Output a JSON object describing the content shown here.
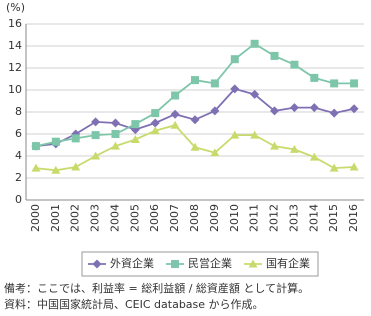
{
  "chart_data": {
    "type": "line",
    "y_unit": "(%)",
    "categories": [
      "2000",
      "2001",
      "2002",
      "2003",
      "2004",
      "2005",
      "2006",
      "2007",
      "2008",
      "2009",
      "2010",
      "2011",
      "2012",
      "2013",
      "2014",
      "2015",
      "2016"
    ],
    "series": [
      {
        "name": "外資企業",
        "color": "#7f70b4",
        "marker": "diamond",
        "values": [
          4.9,
          5.1,
          6.0,
          7.1,
          7.0,
          6.4,
          7.0,
          7.8,
          7.3,
          8.1,
          10.1,
          9.6,
          8.1,
          8.4,
          8.4,
          7.9,
          8.3
        ]
      },
      {
        "name": "民営企業",
        "color": "#7ec6a9",
        "marker": "square",
        "values": [
          4.9,
          5.3,
          5.6,
          5.9,
          6.0,
          6.9,
          7.9,
          9.5,
          10.9,
          10.6,
          12.8,
          14.2,
          13.1,
          12.3,
          11.1,
          10.6,
          10.6
        ]
      },
      {
        "name": "国有企業",
        "color": "#c9da6c",
        "marker": "triangle",
        "values": [
          2.9,
          2.7,
          3.0,
          4.0,
          4.9,
          5.5,
          6.3,
          6.8,
          4.8,
          4.3,
          5.9,
          5.9,
          4.9,
          4.6,
          3.9,
          2.9,
          3.0
        ]
      }
    ],
    "ylim": [
      0,
      16
    ],
    "yticks": [
      0,
      2,
      4,
      6,
      8,
      10,
      12,
      14,
      16
    ],
    "grid": true,
    "notes": [
      "備考：ここでは、利益率 = 総利益額 / 総資産額 として計算。",
      "資料：中国国家統計局、CEIC database から作成。"
    ]
  }
}
